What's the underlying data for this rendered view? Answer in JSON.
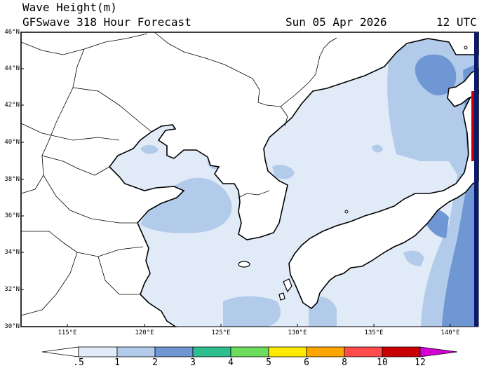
{
  "header": {
    "title": "Wave Height(m)",
    "subtitle": "GFSwave 318 Hour Forecast",
    "date": "Sun 05 Apr 2026",
    "time": "12 UTC"
  },
  "map": {
    "lon_range": [
      111,
      142
    ],
    "lat_range": [
      30,
      46
    ],
    "y_ticks": [
      "30°N",
      "32°N",
      "34°N",
      "36°N",
      "38°N",
      "40°N",
      "42°N",
      "44°N",
      "46°N"
    ],
    "x_ticks": [
      "115°E",
      "120°E",
      "125°E",
      "130°E",
      "135°E",
      "140°E"
    ],
    "land_color": "#ffffff",
    "coast_color": "#000000",
    "border_color": "#000000"
  },
  "colorbar": {
    "labels": [
      ".5",
      "1",
      "2",
      "3",
      "4",
      "5",
      "6",
      "8",
      "10",
      "12"
    ],
    "colors": [
      "#ffffff",
      "#e1ebf7",
      "#b2cbea",
      "#6f97d3",
      "#2fbf8f",
      "#6ddc5c",
      "#ffea00",
      "#ffa500",
      "#ff4b4b",
      "#c80000",
      "#d400d4"
    ]
  }
}
